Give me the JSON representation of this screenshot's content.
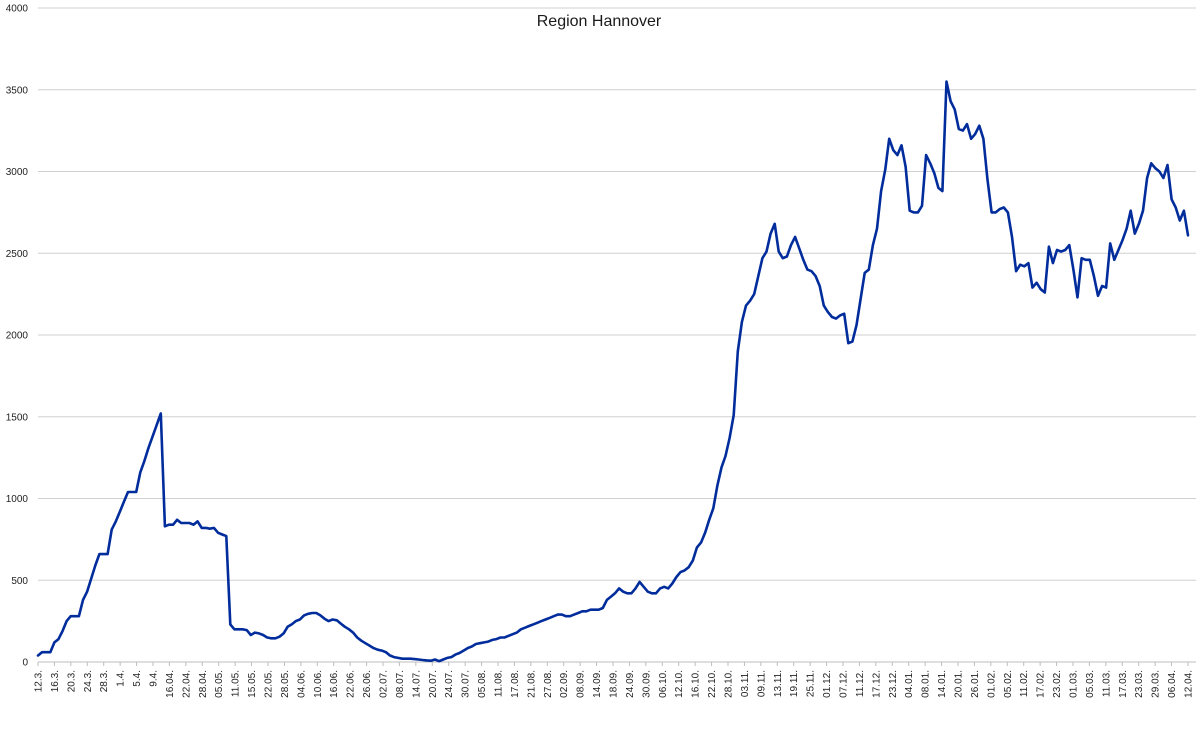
{
  "chart_data": {
    "type": "line",
    "title": "Region Hannover",
    "ylim": [
      0,
      4000
    ],
    "y_ticks": [
      0,
      500,
      1000,
      1500,
      2000,
      2500,
      3000,
      3500,
      4000
    ],
    "grid": true,
    "x_tick_labels": [
      "12.3.",
      "16.3.",
      "20.3.",
      "24.3.",
      "28.3.",
      "1.4.",
      "5.4.",
      "9.4.",
      "16.04.",
      "22.04.",
      "28.04.",
      "05.05.",
      "11.05.",
      "15.05.",
      "22.05.",
      "28.05.",
      "04.06.",
      "10.06.",
      "16.06.",
      "22.06.",
      "26.06.",
      "02.07.",
      "08.07.",
      "14.07.",
      "20.07.",
      "24.07.",
      "30.07.",
      "05.08.",
      "11.08.",
      "17.08.",
      "21.08.",
      "27.08.",
      "02.09.",
      "08.09.",
      "14.09.",
      "18.09.",
      "24.09.",
      "30.09.",
      "06.10.",
      "12.10.",
      "16.10.",
      "22.10.",
      "28.10.",
      "03.11.",
      "09.11.",
      "13.11.",
      "19.11.",
      "25.11.",
      "01.12.",
      "07.12.",
      "11.12.",
      "17.12.",
      "23.12.",
      "04.01.",
      "08.01.",
      "14.01.",
      "20.01.",
      "26.01.",
      "01.02.",
      "05.02.",
      "11.02.",
      "17.02.",
      "23.02.",
      "01.03.",
      "05.03.",
      "11.03.",
      "17.03.",
      "23.03.",
      "29.03.",
      "06.04.",
      "12.04."
    ],
    "series": [
      {
        "color": "#002c9c",
        "values": [
          40,
          60,
          60,
          60,
          120,
          140,
          190,
          250,
          280,
          280,
          280,
          380,
          430,
          510,
          590,
          660,
          660,
          660,
          810,
          860,
          920,
          980,
          1040,
          1040,
          1040,
          1160,
          1230,
          1310,
          1380,
          1450,
          1520,
          830,
          840,
          840,
          870,
          850,
          850,
          850,
          840,
          860,
          820,
          820,
          815,
          820,
          790,
          780,
          770,
          230,
          200,
          200,
          200,
          195,
          165,
          180,
          175,
          165,
          150,
          145,
          145,
          155,
          175,
          215,
          230,
          250,
          260,
          285,
          295,
          300,
          300,
          285,
          265,
          250,
          260,
          255,
          235,
          215,
          200,
          180,
          150,
          130,
          115,
          100,
          85,
          75,
          70,
          60,
          40,
          30,
          25,
          20,
          20,
          20,
          18,
          15,
          12,
          10,
          8,
          15,
          5,
          15,
          25,
          30,
          45,
          55,
          70,
          85,
          95,
          110,
          115,
          120,
          125,
          135,
          140,
          150,
          150,
          160,
          170,
          180,
          200,
          210,
          220,
          230,
          240,
          250,
          260,
          270,
          280,
          290,
          290,
          280,
          280,
          290,
          300,
          310,
          310,
          320,
          320,
          320,
          330,
          380,
          400,
          420,
          450,
          430,
          420,
          420,
          450,
          490,
          460,
          430,
          420,
          420,
          450,
          460,
          450,
          480,
          520,
          550,
          560,
          580,
          620,
          700,
          730,
          790,
          870,
          940,
          1080,
          1190,
          1260,
          1370,
          1510,
          1900,
          2080,
          2180,
          2210,
          2250,
          2360,
          2470,
          2510,
          2620,
          2680,
          2510,
          2470,
          2480,
          2550,
          2600,
          2530,
          2460,
          2400,
          2390,
          2360,
          2300,
          2180,
          2140,
          2110,
          2100,
          2120,
          2130,
          1950,
          1960,
          2060,
          2220,
          2380,
          2400,
          2550,
          2650,
          2880,
          3010,
          3200,
          3130,
          3100,
          3160,
          3030,
          2760,
          2750,
          2750,
          2790,
          3100,
          3050,
          2990,
          2900,
          2880,
          3550,
          3430,
          3380,
          3260,
          3250,
          3290,
          3200,
          3230,
          3280,
          3200,
          2950,
          2750,
          2750,
          2770,
          2780,
          2750,
          2600,
          2390,
          2430,
          2420,
          2440,
          2290,
          2320,
          2280,
          2260,
          2540,
          2440,
          2520,
          2510,
          2520,
          2550,
          2400,
          2230,
          2470,
          2460,
          2460,
          2360,
          2240,
          2300,
          2290,
          2560,
          2460,
          2520,
          2580,
          2650,
          2760,
          2620,
          2680,
          2760,
          2960,
          3050,
          3020,
          3000,
          2960,
          3040,
          2830,
          2780,
          2700,
          2760,
          2610
        ]
      }
    ]
  }
}
